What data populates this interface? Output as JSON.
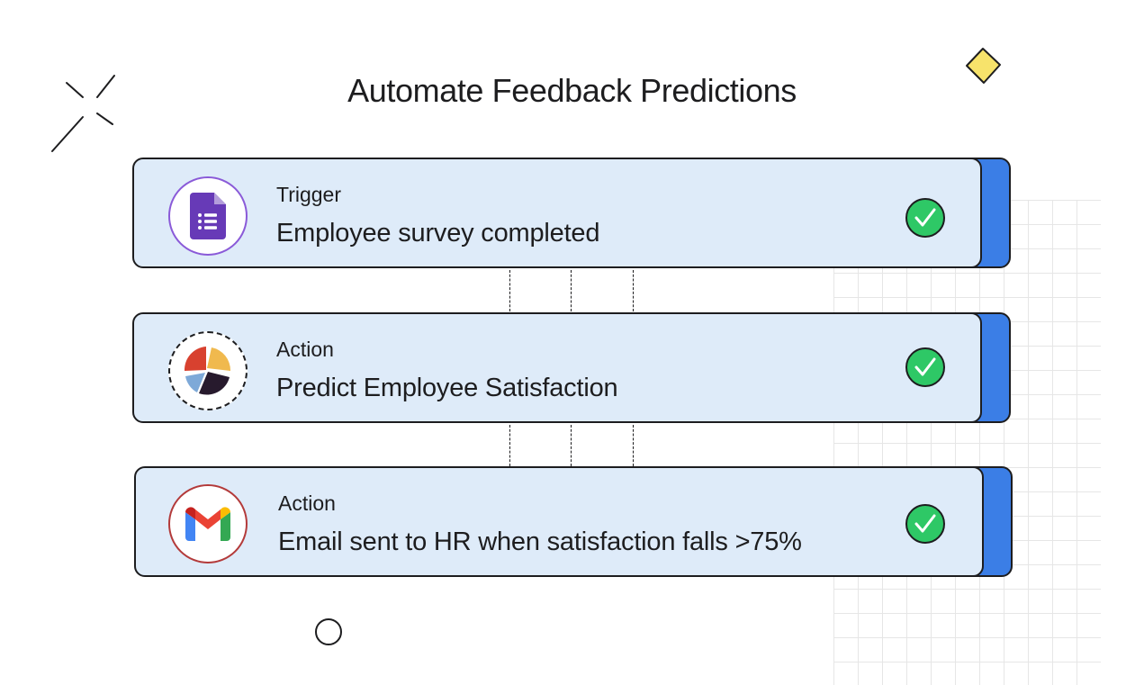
{
  "title": "Automate Feedback Predictions",
  "steps": [
    {
      "label": "Trigger",
      "text": "Employee survey completed",
      "icon": "google-forms-icon",
      "ring_color": "#8a5ad8",
      "status": "complete"
    },
    {
      "label": "Action",
      "text": "Predict Employee Satisfaction",
      "icon": "pie-chart-icon",
      "ring_color": "#1d1d1f",
      "status": "complete"
    },
    {
      "label": "Action",
      "text": "Email sent to HR when satisfaction falls >75%",
      "icon": "gmail-icon",
      "ring_color": "#b33a3a",
      "status": "complete"
    }
  ],
  "colors": {
    "card_fill": "#deebf9",
    "card_shadow": "#3b7ee6",
    "check_green": "#2ec866",
    "deco_yellow": "#f7e36b"
  }
}
